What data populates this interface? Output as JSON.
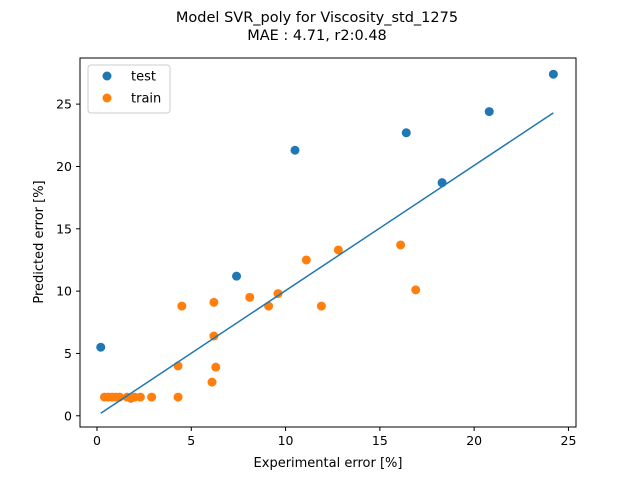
{
  "chart_data": {
    "type": "scatter",
    "title_line1": "Model SVR_poly for Viscosity_std_1275",
    "title_line2": "MAE :  4.71, r2:0.48",
    "xlabel": "Experimental error [%]",
    "ylabel": "Predicted error [%]",
    "xlim": [
      -0.9,
      25.4
    ],
    "ylim": [
      -0.9,
      28.7
    ],
    "xticks": [
      0,
      5,
      10,
      15,
      20,
      25
    ],
    "yticks": [
      0,
      5,
      10,
      15,
      20,
      25
    ],
    "grid": false,
    "legend_position": "top-left",
    "colors": {
      "test": "#1f77b4",
      "train": "#ff7f0e",
      "fit": "#1f77b4"
    },
    "series": [
      {
        "name": "test",
        "points": [
          [
            0.2,
            5.5
          ],
          [
            7.4,
            11.2
          ],
          [
            10.5,
            21.3
          ],
          [
            16.4,
            22.7
          ],
          [
            18.3,
            18.7
          ],
          [
            20.8,
            24.4
          ],
          [
            24.2,
            27.4
          ]
        ]
      },
      {
        "name": "train",
        "points": [
          [
            0.4,
            1.5
          ],
          [
            0.6,
            1.5
          ],
          [
            0.8,
            1.5
          ],
          [
            1.0,
            1.5
          ],
          [
            1.2,
            1.5
          ],
          [
            1.6,
            1.5
          ],
          [
            1.8,
            1.4
          ],
          [
            2.0,
            1.5
          ],
          [
            2.3,
            1.5
          ],
          [
            2.9,
            1.5
          ],
          [
            4.3,
            1.5
          ],
          [
            4.3,
            4.0
          ],
          [
            4.5,
            8.8
          ],
          [
            6.1,
            2.7
          ],
          [
            6.2,
            9.1
          ],
          [
            6.2,
            6.4
          ],
          [
            6.3,
            3.9
          ],
          [
            8.1,
            9.5
          ],
          [
            9.1,
            8.8
          ],
          [
            9.6,
            9.8
          ],
          [
            11.1,
            12.5
          ],
          [
            11.9,
            8.8
          ],
          [
            12.8,
            13.3
          ],
          [
            16.1,
            13.7
          ],
          [
            16.9,
            10.1
          ]
        ]
      }
    ],
    "fit_line": {
      "x": [
        0.2,
        24.2
      ],
      "y": [
        0.2,
        24.3
      ]
    }
  }
}
